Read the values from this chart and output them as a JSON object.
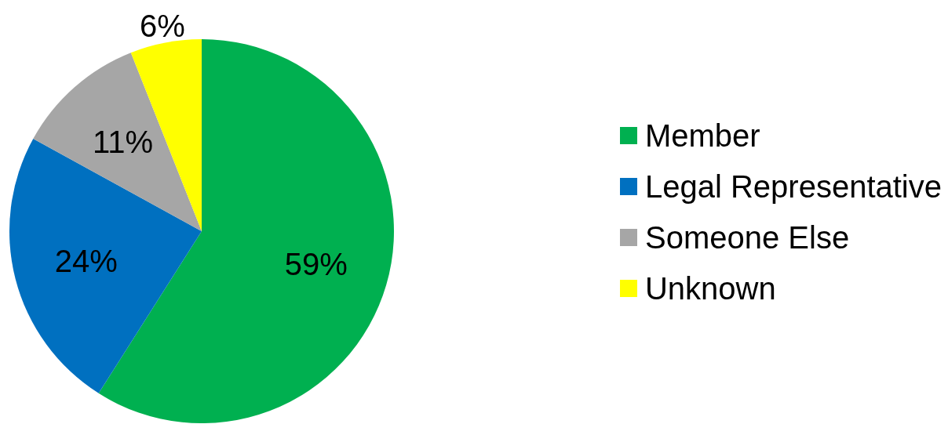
{
  "chart_data": {
    "type": "pie",
    "categories": [
      "Member",
      "Legal Representative",
      "Someone Else",
      "Unknown"
    ],
    "values": [
      59,
      24,
      11,
      6
    ],
    "colors": [
      "#00b050",
      "#0070c0",
      "#a6a6a6",
      "#ffff00"
    ],
    "value_labels": [
      "59%",
      "24%",
      "11%",
      "6%"
    ],
    "legend": "right"
  }
}
